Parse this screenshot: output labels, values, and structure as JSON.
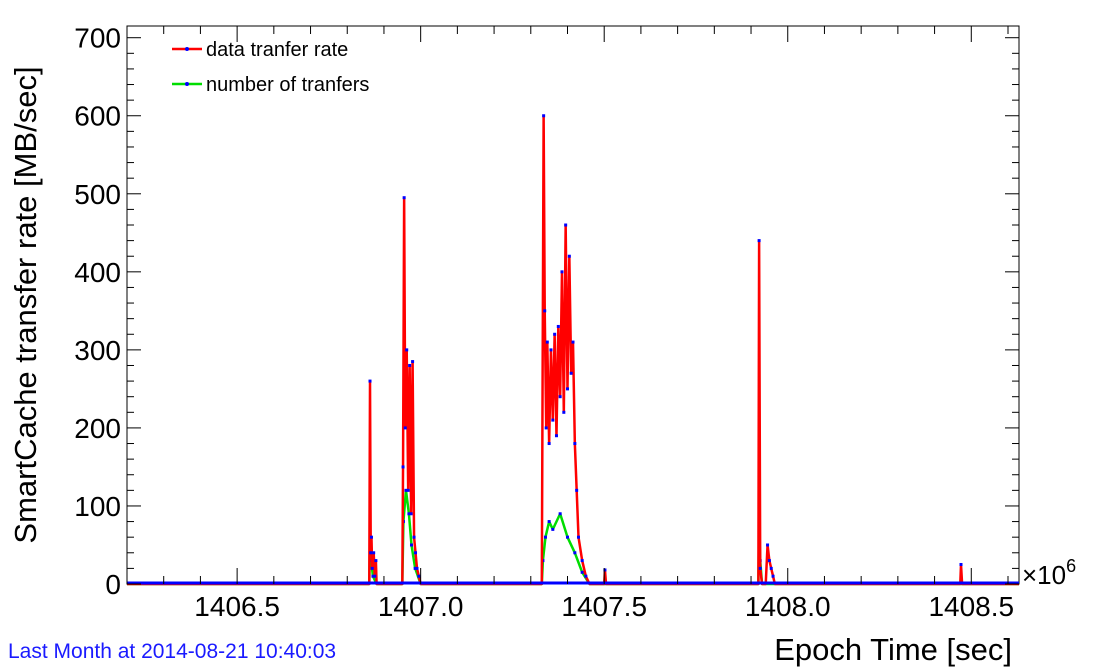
{
  "footer": {
    "note": "Last Month at 2014-08-21 10:40:03"
  },
  "colors": {
    "rate_line": "#ff0000",
    "transfers_line": "#00dd00",
    "markers": "#0000ff",
    "axis": "#000000",
    "footer_text": "#1a1aff"
  },
  "chart_data": {
    "type": "line",
    "xlabel": "Epoch Time [sec]",
    "ylabel": "SmartCache transfer rate [MB/sec]",
    "x_multiplier_label": "×10",
    "x_multiplier_exponent": "6",
    "xlim": [
      1406.2,
      1408.63
    ],
    "ylim": [
      0,
      715
    ],
    "x_ticks": [
      1406.5,
      1407.0,
      1407.5,
      1408.0,
      1408.5
    ],
    "x_tick_labels": [
      "1406.5",
      "1407.0",
      "1407.5",
      "1408.0",
      "1408.5"
    ],
    "y_ticks": [
      0,
      100,
      200,
      300,
      400,
      500,
      600,
      700
    ],
    "y_tick_labels": [
      "0",
      "100",
      "200",
      "300",
      "400",
      "500",
      "600",
      "700"
    ],
    "grid": false,
    "legend_position": "top-left",
    "series": [
      {
        "name": "data tranfer rate",
        "color": "#ff0000",
        "points": [
          [
            1406.2,
            0
          ],
          [
            1406.86,
            0
          ],
          [
            1406.862,
            260
          ],
          [
            1406.864,
            40
          ],
          [
            1406.866,
            60
          ],
          [
            1406.868,
            20
          ],
          [
            1406.872,
            40
          ],
          [
            1406.875,
            10
          ],
          [
            1406.878,
            30
          ],
          [
            1406.88,
            0
          ],
          [
            1406.95,
            0
          ],
          [
            1406.952,
            150
          ],
          [
            1406.955,
            495
          ],
          [
            1406.958,
            200
          ],
          [
            1406.962,
            300
          ],
          [
            1406.966,
            120
          ],
          [
            1406.97,
            280
          ],
          [
            1406.974,
            90
          ],
          [
            1406.978,
            285
          ],
          [
            1406.982,
            60
          ],
          [
            1406.986,
            40
          ],
          [
            1406.99,
            20
          ],
          [
            1406.995,
            10
          ],
          [
            1407.0,
            0
          ],
          [
            1407.33,
            0
          ],
          [
            1407.335,
            600
          ],
          [
            1407.338,
            350
          ],
          [
            1407.342,
            200
          ],
          [
            1407.345,
            310
          ],
          [
            1407.35,
            180
          ],
          [
            1407.355,
            300
          ],
          [
            1407.36,
            210
          ],
          [
            1407.365,
            320
          ],
          [
            1407.37,
            190
          ],
          [
            1407.375,
            330
          ],
          [
            1407.38,
            240
          ],
          [
            1407.385,
            400
          ],
          [
            1407.39,
            220
          ],
          [
            1407.395,
            460
          ],
          [
            1407.4,
            250
          ],
          [
            1407.405,
            420
          ],
          [
            1407.41,
            270
          ],
          [
            1407.415,
            310
          ],
          [
            1407.42,
            180
          ],
          [
            1407.425,
            120
          ],
          [
            1407.43,
            60
          ],
          [
            1407.44,
            30
          ],
          [
            1407.45,
            10
          ],
          [
            1407.46,
            0
          ],
          [
            1407.5,
            0
          ],
          [
            1407.502,
            18
          ],
          [
            1407.505,
            0
          ],
          [
            1407.92,
            0
          ],
          [
            1407.922,
            440
          ],
          [
            1407.925,
            20
          ],
          [
            1407.93,
            0
          ],
          [
            1407.94,
            0
          ],
          [
            1407.945,
            50
          ],
          [
            1407.95,
            30
          ],
          [
            1407.955,
            20
          ],
          [
            1407.96,
            10
          ],
          [
            1407.965,
            0
          ],
          [
            1408.47,
            0
          ],
          [
            1408.472,
            25
          ],
          [
            1408.475,
            0
          ],
          [
            1408.63,
            0
          ]
        ]
      },
      {
        "name": "number of tranfers",
        "color": "#00dd00",
        "points": [
          [
            1406.2,
            0
          ],
          [
            1406.86,
            0
          ],
          [
            1406.862,
            60
          ],
          [
            1406.865,
            30
          ],
          [
            1406.87,
            10
          ],
          [
            1406.88,
            0
          ],
          [
            1406.95,
            0
          ],
          [
            1406.953,
            80
          ],
          [
            1406.96,
            120
          ],
          [
            1406.968,
            90
          ],
          [
            1406.975,
            50
          ],
          [
            1406.985,
            20
          ],
          [
            1407.0,
            0
          ],
          [
            1407.33,
            0
          ],
          [
            1407.333,
            30
          ],
          [
            1407.34,
            60
          ],
          [
            1407.35,
            80
          ],
          [
            1407.36,
            70
          ],
          [
            1407.38,
            90
          ],
          [
            1407.4,
            60
          ],
          [
            1407.42,
            40
          ],
          [
            1407.44,
            15
          ],
          [
            1407.46,
            0
          ],
          [
            1407.92,
            0
          ],
          [
            1407.922,
            80
          ],
          [
            1407.925,
            30
          ],
          [
            1407.93,
            0
          ],
          [
            1408.63,
            0
          ]
        ]
      }
    ]
  }
}
